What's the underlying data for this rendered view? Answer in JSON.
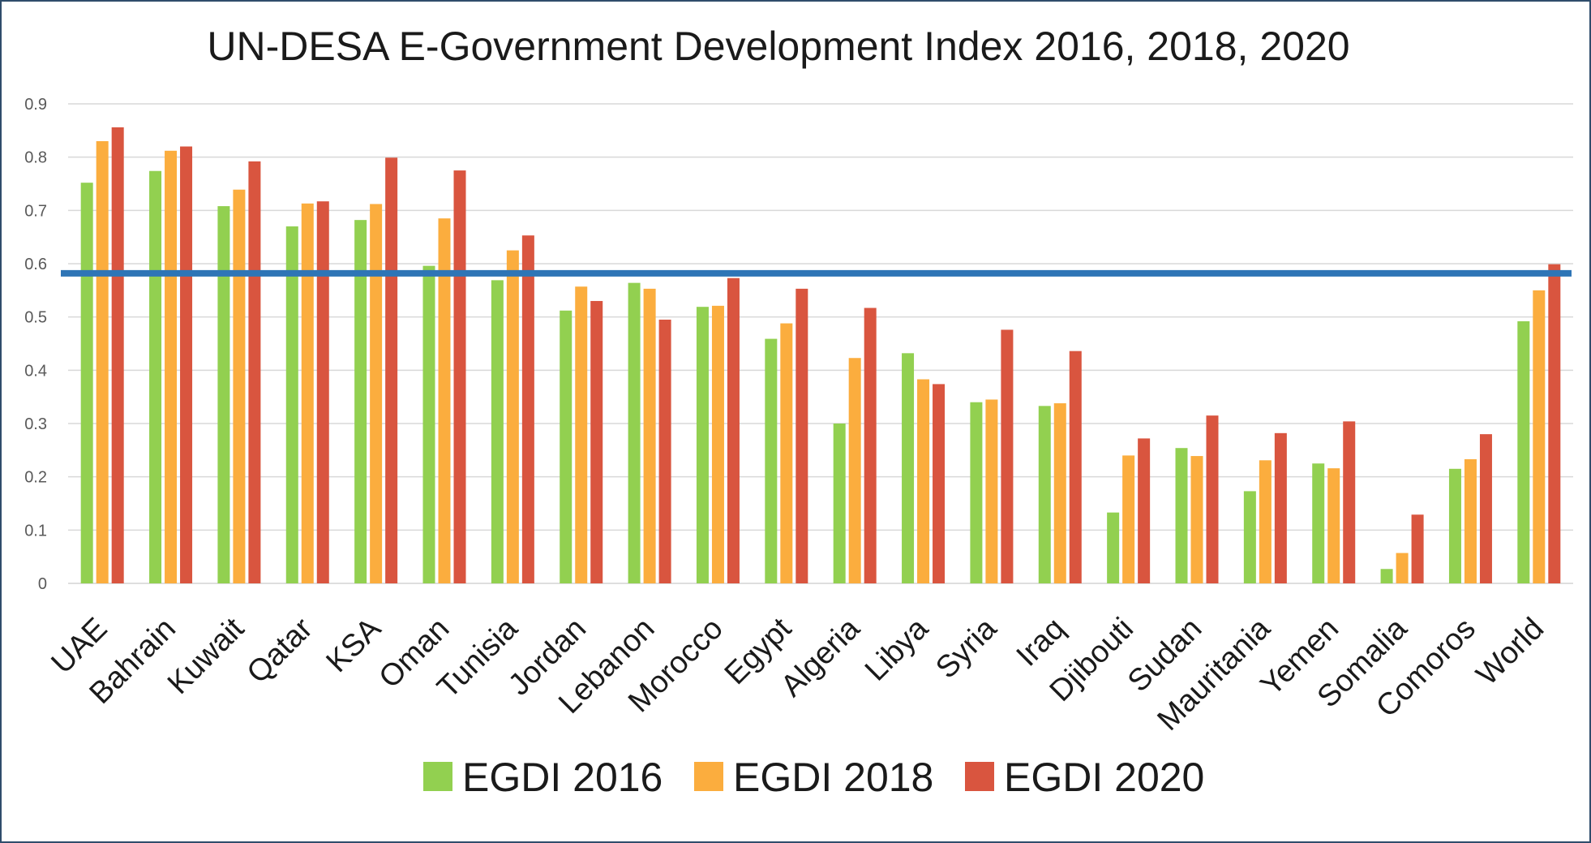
{
  "chart_data": {
    "type": "bar",
    "title": "UN-DESA E-Government Development Index 2016, 2018, 2020",
    "categories": [
      "UAE",
      "Bahrain",
      "Kuwait",
      "Qatar",
      "KSA",
      "Oman",
      "Tunisia",
      "Jordan",
      "Lebanon",
      "Morocco",
      "Egypt",
      "Algeria",
      "Libya",
      "Syria",
      "Iraq",
      "Djibouti",
      "Sudan",
      "Mauritania",
      "Yemen",
      "Somalia",
      "Comoros",
      "World"
    ],
    "series": [
      {
        "name": "EGDI 2016",
        "color": "#92d050",
        "values": [
          0.752,
          0.774,
          0.708,
          0.67,
          0.682,
          0.596,
          0.569,
          0.512,
          0.564,
          0.519,
          0.459,
          0.3,
          0.432,
          0.34,
          0.333,
          0.133,
          0.254,
          0.173,
          0.225,
          0.027,
          0.215,
          0.492
        ]
      },
      {
        "name": "EGDI 2018",
        "color": "#fbad3e",
        "values": [
          0.83,
          0.812,
          0.739,
          0.713,
          0.712,
          0.685,
          0.625,
          0.557,
          0.553,
          0.521,
          0.488,
          0.423,
          0.383,
          0.345,
          0.338,
          0.24,
          0.239,
          0.231,
          0.216,
          0.057,
          0.233,
          0.55
        ]
      },
      {
        "name": "EGDI 2020",
        "color": "#d9553f",
        "values": [
          0.856,
          0.82,
          0.792,
          0.717,
          0.799,
          0.775,
          0.653,
          0.53,
          0.495,
          0.573,
          0.553,
          0.517,
          0.374,
          0.476,
          0.436,
          0.272,
          0.315,
          0.282,
          0.304,
          0.129,
          0.28,
          0.599
        ]
      }
    ],
    "yticks": [
      "0",
      "0.1",
      "0.2",
      "0.3",
      "0.4",
      "0.5",
      "0.6",
      "0.7",
      "0.8",
      "0.9"
    ],
    "ylim": [
      0,
      0.9
    ],
    "grid": true,
    "reference_line": {
      "value": 0.582,
      "color": "#2e75b6"
    },
    "legend_position": "bottom"
  }
}
